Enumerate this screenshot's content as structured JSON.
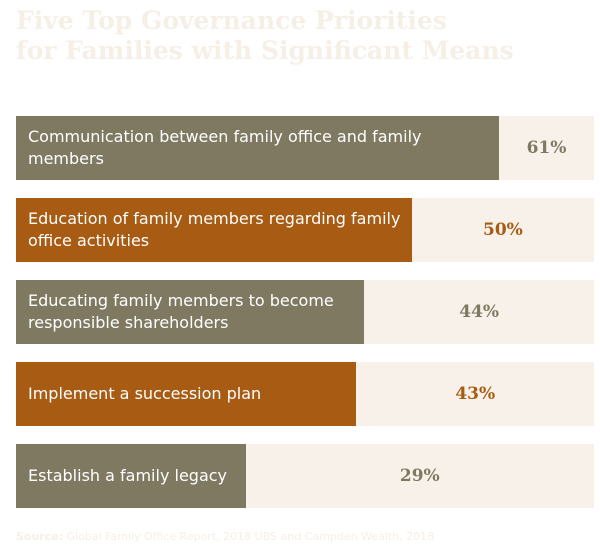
{
  "chart_data": {
    "type": "bar",
    "orientation": "horizontal",
    "title_lines": [
      "Five Top Governance Priorities",
      "for Families with Significant Means"
    ],
    "categories": [
      "Communication between family office and family members",
      "Education of family members regarding family office activities",
      "Educating family members to become responsible shareholders",
      "Implement a succession plan",
      "Establish a family legacy"
    ],
    "values": [
      61,
      50,
      44,
      43,
      29
    ],
    "value_labels": [
      "61%",
      "50%",
      "44%",
      "43%",
      "29%"
    ],
    "xlim": [
      0,
      73
    ],
    "grid": false,
    "legend": "none"
  },
  "colors": {
    "bar_olive": "#7f7962",
    "bar_orange": "#a85b12",
    "track": "#f7f1ea",
    "text_olive": "#7f7962",
    "text_orange": "#a85b12",
    "title_faint": "#f6efe6"
  },
  "bar_colors": [
    "bar_olive",
    "bar_orange",
    "bar_olive",
    "bar_orange",
    "bar_olive"
  ],
  "source": {
    "label": "Source:",
    "text": "Global Family Office Report, 2018 UBS and Campden Wealth, 2018"
  }
}
